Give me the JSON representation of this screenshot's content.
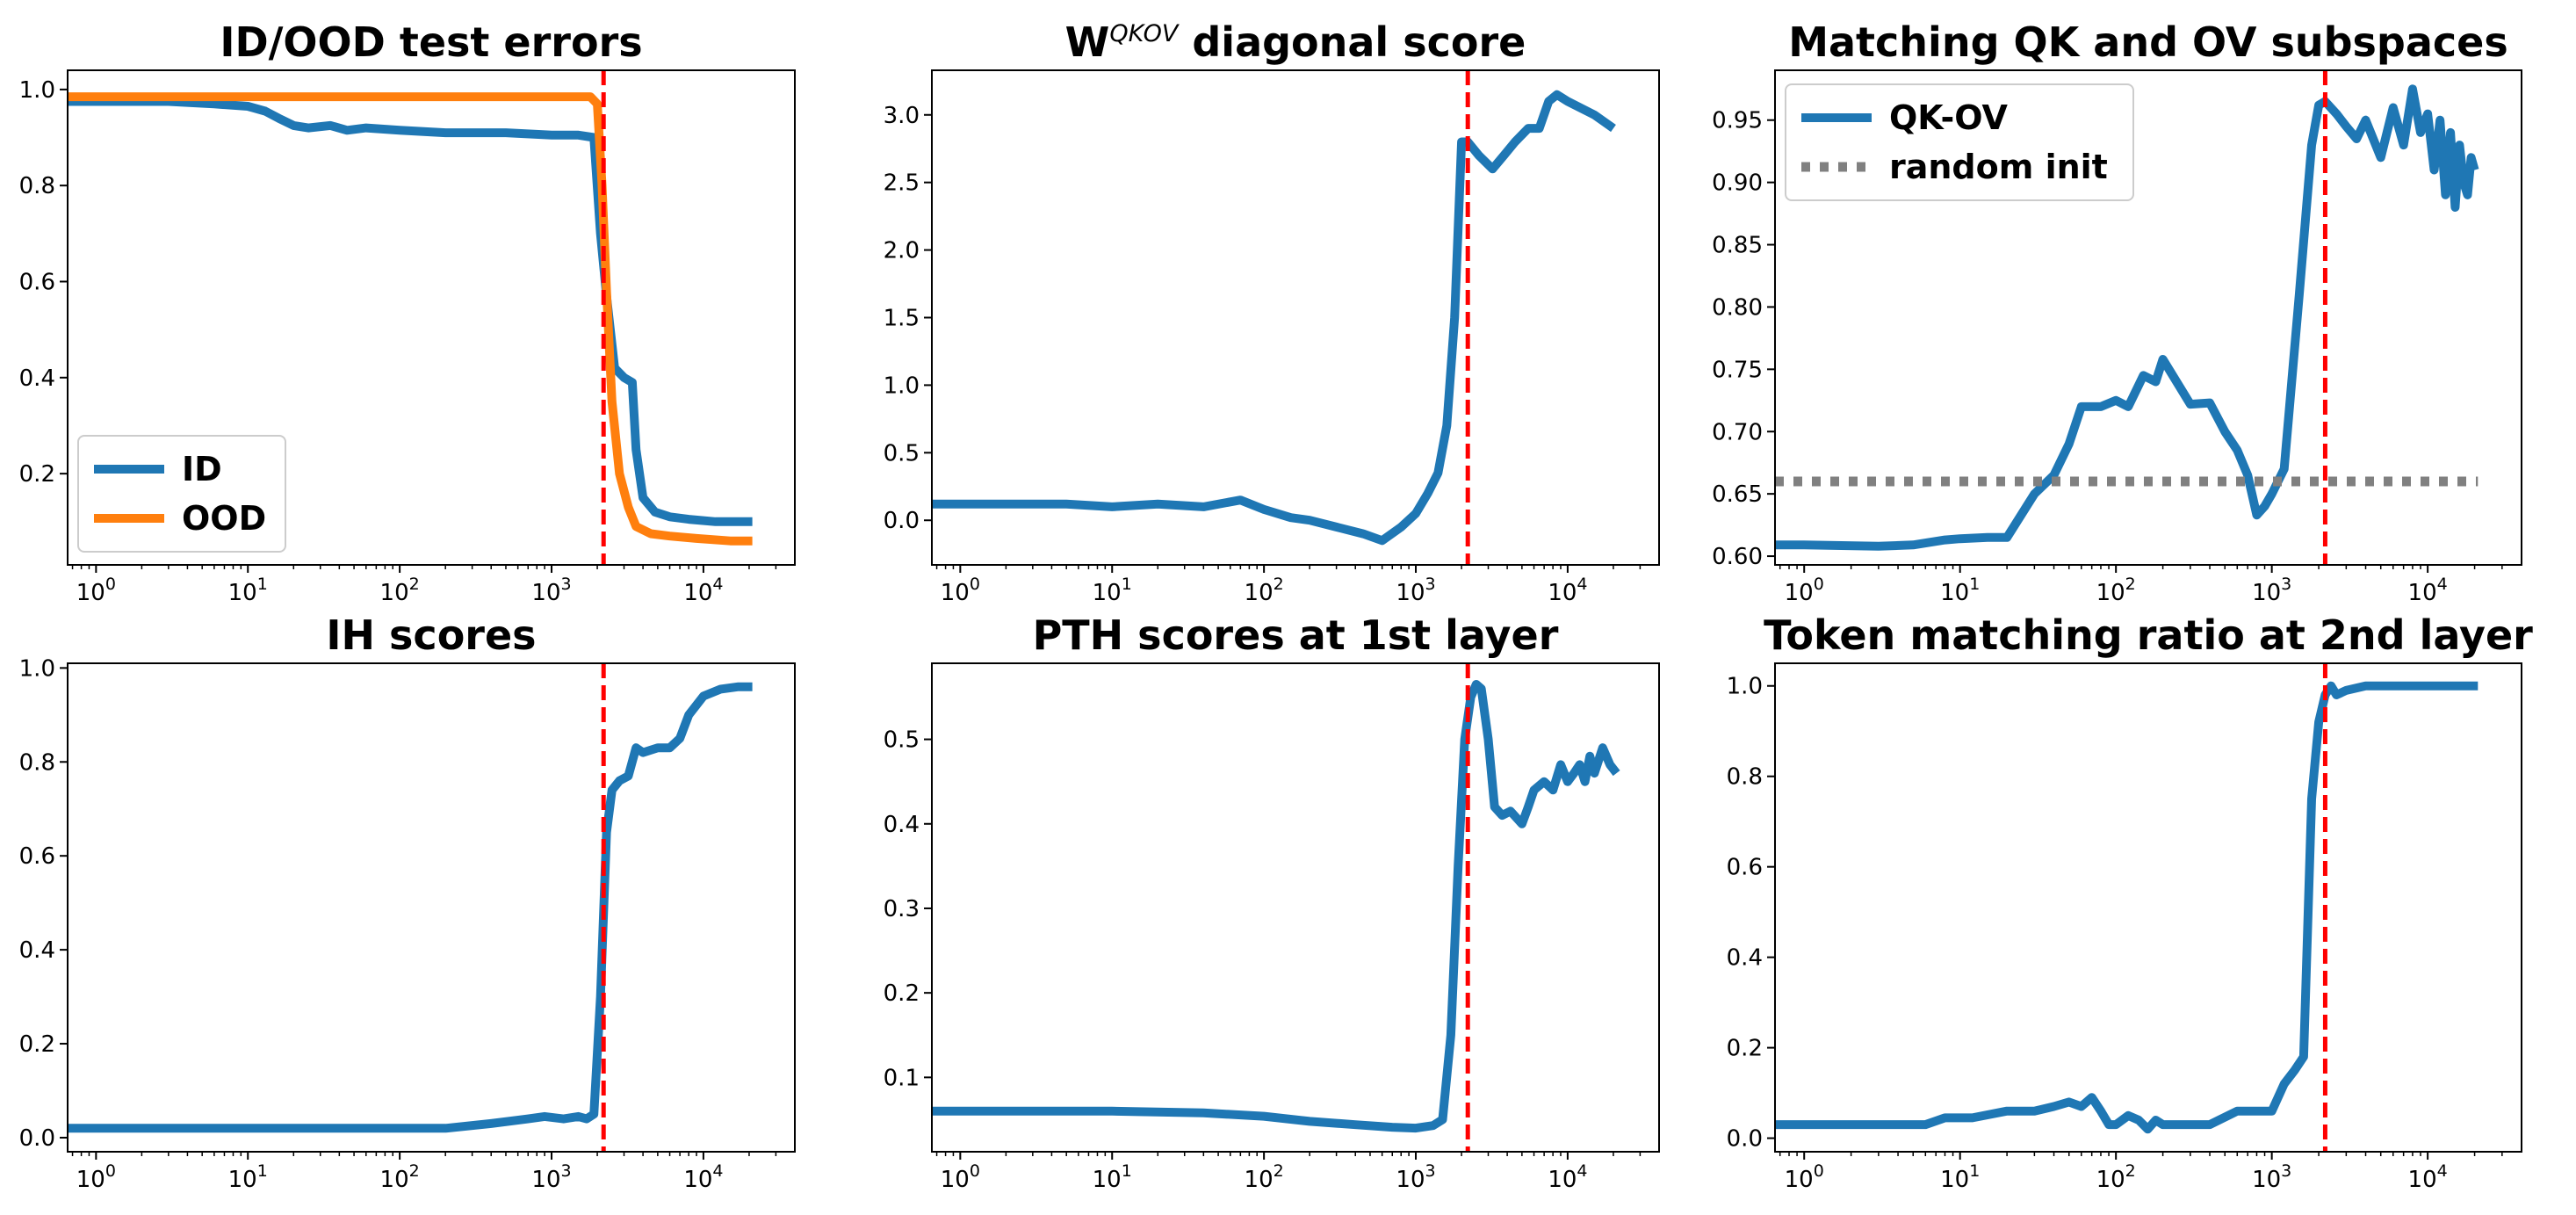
{
  "figure": {
    "colors": {
      "blue": "#1f77b4",
      "orange": "#ff7f0e",
      "red": "#ff0000",
      "gray": "#808080"
    }
  },
  "chart_data": [
    {
      "type": "line",
      "title": "ID/OOD test errors",
      "xscale": "log",
      "xlim": [
        0.65,
        40000
      ],
      "ylim": [
        0.01,
        1.04
      ],
      "xticks": [
        {
          "v": 1,
          "m": "0"
        },
        {
          "v": 10,
          "m": "1"
        },
        {
          "v": 100,
          "m": "2"
        },
        {
          "v": 1000,
          "m": "3"
        },
        {
          "v": 10000,
          "m": "4"
        }
      ],
      "yticks": [
        "0.2",
        "0.4",
        "0.6",
        "0.8",
        "1.0"
      ],
      "vline": 2200,
      "legend": {
        "position": "lower-left",
        "entries": [
          "ID",
          "OOD"
        ]
      },
      "series": [
        {
          "name": "ID",
          "color": "#1f77b4",
          "style": "solid",
          "x": [
            0.65,
            3,
            6,
            10,
            13,
            16,
            20,
            25,
            35,
            45,
            60,
            100,
            200,
            500,
            1000,
            1500,
            1900,
            2100,
            2300,
            2600,
            3000,
            3400,
            3600,
            4000,
            4800,
            6000,
            8000,
            12000,
            21000
          ],
          "y": [
            0.975,
            0.975,
            0.97,
            0.965,
            0.955,
            0.94,
            0.925,
            0.92,
            0.925,
            0.915,
            0.92,
            0.915,
            0.91,
            0.91,
            0.905,
            0.905,
            0.9,
            0.7,
            0.57,
            0.42,
            0.4,
            0.39,
            0.25,
            0.15,
            0.12,
            0.11,
            0.105,
            0.1,
            0.1
          ]
        },
        {
          "name": "OOD",
          "color": "#ff7f0e",
          "style": "solid",
          "x": [
            0.65,
            10,
            100,
            1000,
            1800,
            2000,
            2150,
            2300,
            2500,
            2800,
            3200,
            3600,
            4500,
            6000,
            9000,
            15000,
            21000
          ],
          "y": [
            0.985,
            0.985,
            0.985,
            0.985,
            0.985,
            0.97,
            0.8,
            0.58,
            0.35,
            0.2,
            0.13,
            0.09,
            0.075,
            0.07,
            0.065,
            0.06,
            0.06
          ]
        }
      ]
    },
    {
      "type": "line",
      "title": "W",
      "title_superscript": "QKOV",
      "title_suffix": " diagonal score",
      "xscale": "log",
      "xlim": [
        0.65,
        40000
      ],
      "ylim": [
        -0.33,
        3.33
      ],
      "xticks": [
        {
          "v": 1,
          "m": "0"
        },
        {
          "v": 10,
          "m": "1"
        },
        {
          "v": 100,
          "m": "2"
        },
        {
          "v": 1000,
          "m": "3"
        },
        {
          "v": 10000,
          "m": "4"
        }
      ],
      "yticks": [
        "0.0",
        "0.5",
        "1.0",
        "1.5",
        "2.0",
        "2.5",
        "3.0"
      ],
      "vline": 2200,
      "series": [
        {
          "name": "diagonal score",
          "color": "#1f77b4",
          "style": "solid",
          "x": [
            0.65,
            1,
            3,
            5,
            10,
            20,
            40,
            70,
            100,
            150,
            200,
            300,
            450,
            600,
            800,
            1000,
            1200,
            1400,
            1600,
            1800,
            2000,
            2200,
            2600,
            3200,
            3800,
            4500,
            5500,
            6500,
            7500,
            8500,
            10000,
            15000,
            20000
          ],
          "y": [
            0.12,
            0.12,
            0.12,
            0.12,
            0.1,
            0.12,
            0.1,
            0.15,
            0.08,
            0.02,
            0.0,
            -0.05,
            -0.1,
            -0.15,
            -0.05,
            0.05,
            0.2,
            0.35,
            0.7,
            1.5,
            2.8,
            2.8,
            2.7,
            2.6,
            2.7,
            2.8,
            2.9,
            2.9,
            3.1,
            3.15,
            3.1,
            3.0,
            2.9
          ]
        }
      ]
    },
    {
      "type": "line",
      "title": "Matching QK and OV subspaces",
      "xscale": "log",
      "xlim": [
        0.65,
        40000
      ],
      "ylim": [
        0.593,
        0.99
      ],
      "xticks": [
        {
          "v": 1,
          "m": "0"
        },
        {
          "v": 10,
          "m": "1"
        },
        {
          "v": 100,
          "m": "2"
        },
        {
          "v": 1000,
          "m": "3"
        },
        {
          "v": 10000,
          "m": "4"
        }
      ],
      "yticks": [
        "0.60",
        "0.65",
        "0.70",
        "0.75",
        "0.80",
        "0.85",
        "0.90",
        "0.95"
      ],
      "vline": 2200,
      "legend": {
        "position": "upper-left",
        "entries": [
          "QK-OV",
          "random init"
        ]
      },
      "series": [
        {
          "name": "QK-OV",
          "color": "#1f77b4",
          "style": "solid",
          "x": [
            0.65,
            1,
            3,
            5,
            8,
            10,
            15,
            20,
            30,
            40,
            50,
            60,
            80,
            100,
            120,
            150,
            180,
            200,
            300,
            400,
            500,
            600,
            700,
            800,
            900,
            1000,
            1200,
            1500,
            1800,
            2000,
            2200,
            2600,
            3000,
            3500,
            4000,
            5000,
            6000,
            7000,
            8000,
            9000,
            10000,
            11000,
            12000,
            13000,
            14000,
            15000,
            16000,
            17000,
            18000,
            19000,
            20000
          ],
          "y": [
            0.609,
            0.609,
            0.608,
            0.609,
            0.613,
            0.614,
            0.615,
            0.615,
            0.65,
            0.665,
            0.69,
            0.72,
            0.72,
            0.725,
            0.72,
            0.745,
            0.74,
            0.758,
            0.722,
            0.723,
            0.7,
            0.685,
            0.665,
            0.633,
            0.64,
            0.65,
            0.67,
            0.81,
            0.93,
            0.962,
            0.965,
            0.955,
            0.945,
            0.935,
            0.95,
            0.92,
            0.96,
            0.93,
            0.975,
            0.94,
            0.955,
            0.91,
            0.95,
            0.89,
            0.94,
            0.88,
            0.93,
            0.9,
            0.89,
            0.92,
            0.91
          ]
        },
        {
          "name": "random init",
          "color": "#808080",
          "style": "dotted",
          "x": [
            0.65,
            21000
          ],
          "y": [
            0.66,
            0.66
          ]
        }
      ]
    },
    {
      "type": "line",
      "title": "IH scores",
      "xscale": "log",
      "xlim": [
        0.65,
        40000
      ],
      "ylim": [
        -0.03,
        1.01
      ],
      "xticks": [
        {
          "v": 1,
          "m": "0"
        },
        {
          "v": 10,
          "m": "1"
        },
        {
          "v": 100,
          "m": "2"
        },
        {
          "v": 1000,
          "m": "3"
        },
        {
          "v": 10000,
          "m": "4"
        }
      ],
      "yticks": [
        "0.0",
        "0.2",
        "0.4",
        "0.6",
        "0.8",
        "1.0"
      ],
      "vline": 2200,
      "series": [
        {
          "name": "IH score",
          "color": "#1f77b4",
          "style": "solid",
          "x": [
            0.65,
            10,
            100,
            200,
            400,
            700,
            900,
            1200,
            1500,
            1700,
            1900,
            2100,
            2300,
            2500,
            2800,
            3200,
            3600,
            4000,
            5000,
            6000,
            7000,
            8000,
            10000,
            13000,
            17000,
            21000
          ],
          "y": [
            0.02,
            0.02,
            0.02,
            0.02,
            0.03,
            0.04,
            0.045,
            0.04,
            0.045,
            0.04,
            0.05,
            0.3,
            0.65,
            0.74,
            0.76,
            0.77,
            0.83,
            0.82,
            0.83,
            0.83,
            0.85,
            0.9,
            0.94,
            0.955,
            0.96,
            0.96
          ]
        }
      ]
    },
    {
      "type": "line",
      "title": "PTH scores at 1st layer",
      "xscale": "log",
      "xlim": [
        0.65,
        40000
      ],
      "ylim": [
        0.012,
        0.59
      ],
      "xticks": [
        {
          "v": 1,
          "m": "0"
        },
        {
          "v": 10,
          "m": "1"
        },
        {
          "v": 100,
          "m": "2"
        },
        {
          "v": 1000,
          "m": "3"
        },
        {
          "v": 10000,
          "m": "4"
        }
      ],
      "yticks": [
        "0.1",
        "0.2",
        "0.3",
        "0.4",
        "0.5"
      ],
      "vline": 2200,
      "series": [
        {
          "name": "PTH score",
          "color": "#1f77b4",
          "style": "solid",
          "x": [
            0.65,
            10,
            40,
            100,
            200,
            400,
            700,
            1000,
            1300,
            1500,
            1700,
            1900,
            2100,
            2300,
            2500,
            2700,
            3000,
            3300,
            3700,
            4200,
            5000,
            5500,
            6000,
            7000,
            8000,
            9000,
            10000,
            11000,
            12000,
            13000,
            14000,
            15000,
            17000,
            19000,
            21000
          ],
          "y": [
            0.06,
            0.06,
            0.058,
            0.054,
            0.048,
            0.044,
            0.041,
            0.04,
            0.043,
            0.05,
            0.15,
            0.35,
            0.5,
            0.55,
            0.565,
            0.56,
            0.5,
            0.42,
            0.41,
            0.415,
            0.4,
            0.42,
            0.44,
            0.45,
            0.44,
            0.47,
            0.45,
            0.46,
            0.47,
            0.45,
            0.48,
            0.46,
            0.49,
            0.47,
            0.46
          ]
        }
      ]
    },
    {
      "type": "line",
      "title": "Token matching ratio at 2nd layer",
      "xscale": "log",
      "xlim": [
        0.65,
        40000
      ],
      "ylim": [
        -0.03,
        1.05
      ],
      "xticks": [
        {
          "v": 1,
          "m": "0"
        },
        {
          "v": 10,
          "m": "1"
        },
        {
          "v": 100,
          "m": "2"
        },
        {
          "v": 1000,
          "m": "3"
        },
        {
          "v": 10000,
          "m": "4"
        }
      ],
      "yticks": [
        "0.0",
        "0.2",
        "0.4",
        "0.6",
        "0.8",
        "1.0"
      ],
      "vline": 2200,
      "series": [
        {
          "name": "token matching ratio",
          "color": "#1f77b4",
          "style": "solid",
          "x": [
            0.65,
            1,
            6,
            8,
            12,
            20,
            30,
            40,
            50,
            60,
            70,
            80,
            90,
            100,
            120,
            140,
            160,
            180,
            200,
            400,
            600,
            800,
            1000,
            1200,
            1400,
            1600,
            1800,
            2000,
            2200,
            2400,
            2600,
            3000,
            4000,
            10000,
            21000
          ],
          "y": [
            0.03,
            0.03,
            0.03,
            0.045,
            0.045,
            0.06,
            0.06,
            0.07,
            0.08,
            0.07,
            0.09,
            0.06,
            0.03,
            0.03,
            0.05,
            0.04,
            0.02,
            0.04,
            0.03,
            0.03,
            0.06,
            0.06,
            0.06,
            0.12,
            0.15,
            0.18,
            0.75,
            0.92,
            0.98,
            1.0,
            0.98,
            0.99,
            1.0,
            1.0,
            1.0
          ]
        }
      ]
    }
  ]
}
